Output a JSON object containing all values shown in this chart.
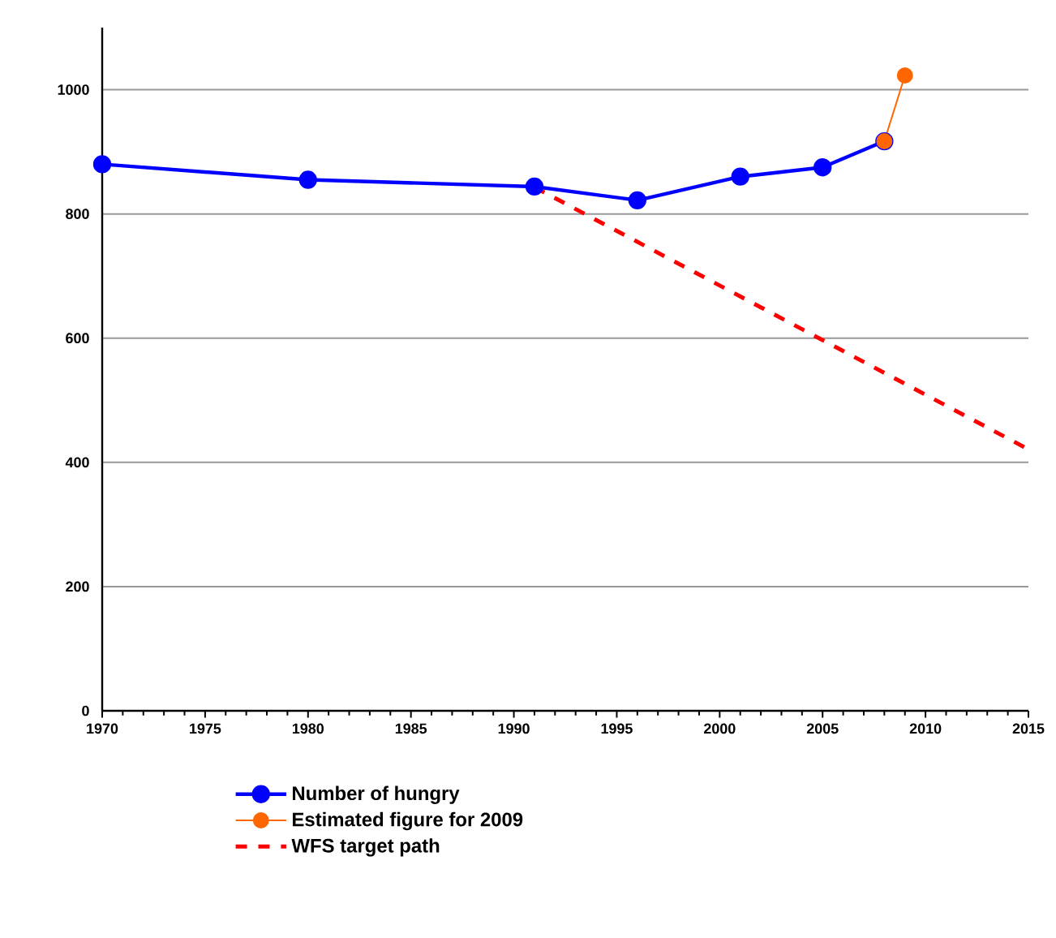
{
  "chart_data": {
    "type": "line",
    "xlim": [
      1970,
      2015
    ],
    "xticks": [
      1970,
      1975,
      1980,
      1985,
      1990,
      1995,
      2000,
      2005,
      2010,
      2015
    ],
    "ylim": [
      0,
      1100
    ],
    "yticks": [
      0,
      200,
      400,
      600,
      800,
      1000
    ],
    "grid": "y",
    "legend": "bottom",
    "series": [
      {
        "name": "Number of hungry",
        "color": "#0000ff",
        "marker": "circle",
        "line_style": "solid",
        "x": [
          1970,
          1980,
          1991,
          1996,
          2001,
          2005,
          2008
        ],
        "values": [
          880,
          855,
          844,
          822,
          860,
          875,
          917
        ]
      },
      {
        "name": "Estimated figure for 2009",
        "color": "#ff6600",
        "marker": "circle",
        "line_style": "solid",
        "x": [
          2008,
          2009
        ],
        "values": [
          917,
          1023
        ]
      },
      {
        "name": "WFS target path",
        "color": "#ff0000",
        "marker": "none",
        "line_style": "dashed",
        "x": [
          1991,
          2015
        ],
        "values": [
          843,
          421
        ]
      }
    ]
  }
}
